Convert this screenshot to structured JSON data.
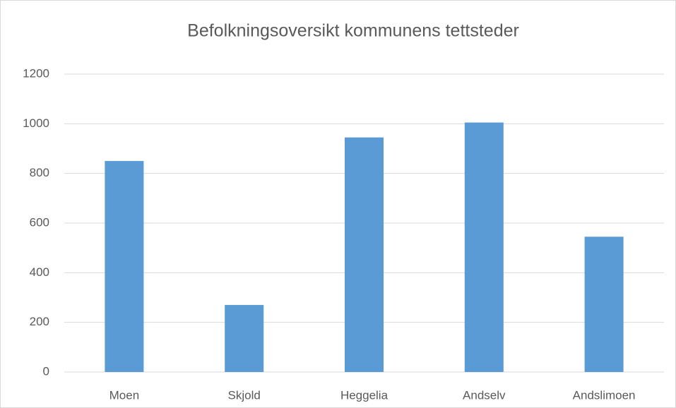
{
  "chart_data": {
    "type": "bar",
    "title": "Befolkningsoversikt kommunens tettsteder",
    "categories": [
      "Moen",
      "Skjold",
      "Heggelia",
      "Andselv",
      "Andslimoen"
    ],
    "values": [
      850,
      270,
      945,
      1005,
      545
    ],
    "color": "#5b9bd5",
    "ylim": [
      0,
      1200
    ],
    "yticks": [
      0,
      200,
      400,
      600,
      800,
      1000,
      1200
    ],
    "grid": true
  }
}
